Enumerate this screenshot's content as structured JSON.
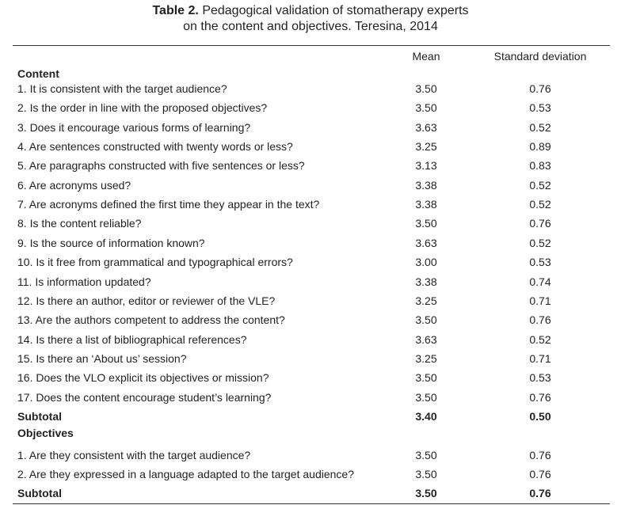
{
  "title": {
    "label": "Table 2.",
    "lines": [
      "Pedagogical validation of stomatherapy experts",
      "on the content and objectives. Teresina, 2014"
    ]
  },
  "table": {
    "columns": [
      "Mean",
      "Standard deviation"
    ],
    "sections": [
      {
        "name": "Content",
        "rows": [
          [
            "1. It is consistent with the target audience?",
            "3.50",
            "0.76"
          ],
          [
            "2. Is the order in line with the proposed objectives?",
            "3.50",
            "0.53"
          ],
          [
            "3. Does it encourage various forms of learning?",
            "3.63",
            "0.52"
          ],
          [
            "4. Are sentences constructed with twenty words or less?",
            "3.25",
            "0.89"
          ],
          [
            "5. Are paragraphs constructed with five sentences or less?",
            "3.13",
            "0.83"
          ],
          [
            "6. Are acronyms used?",
            "3.38",
            "0.52"
          ],
          [
            "7. Are acronyms defined the first time they appear in the text?",
            "3.38",
            "0.52"
          ],
          [
            "8. Is the content reliable?",
            "3.50",
            "0.76"
          ],
          [
            "9. Is the source of information known?",
            "3.63",
            "0.52"
          ],
          [
            "10. Is it free from grammatical and typographical errors?",
            "3.00",
            "0.53"
          ],
          [
            "11. Is information updated?",
            "3.38",
            "0.74"
          ],
          [
            "12. Is there an author, editor or reviewer of the VLE?",
            "3.25",
            "0.71"
          ],
          [
            "13. Are the authors competent to address the content?",
            "3.50",
            "0.76"
          ],
          [
            "14. Is there a list of bibliographical references?",
            "3.63",
            "0.52"
          ],
          [
            "15. Is there an ‘About us’ session?",
            "3.25",
            "0.71"
          ],
          [
            "16. Does the VLO explicit its objectives or mission?",
            "3.50",
            "0.53"
          ],
          [
            "17. Does the content encourage student’s learning?",
            "3.50",
            "0.76"
          ]
        ],
        "subtotal": [
          "Subtotal",
          "3.40",
          "0.50"
        ]
      },
      {
        "name": "Objectives",
        "rows": [
          [
            "1. Are they consistent with the target audience?",
            "3.50",
            "0.76"
          ],
          [
            "2. Are they expressed in a language adapted to the target audience?",
            "3.50",
            "0.76"
          ]
        ],
        "subtotal": [
          "Subtotal",
          "3.50",
          "0.76"
        ]
      }
    ]
  }
}
